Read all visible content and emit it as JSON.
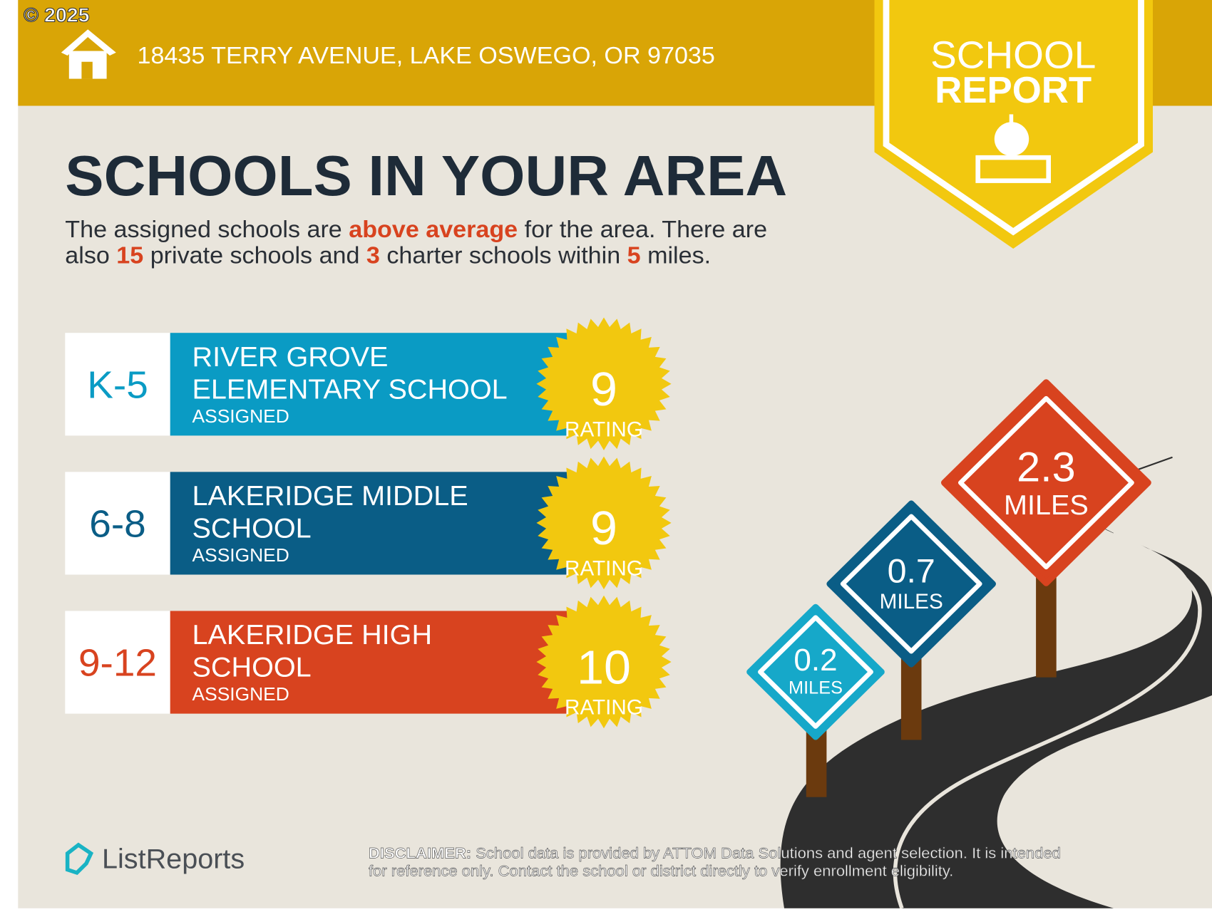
{
  "copyright": "© 2025",
  "header": {
    "address": "18435 TERRY AVENUE, LAKE OSWEGO, OR 97035",
    "badge_line1": "SCHOOL",
    "badge_line2": "REPORT"
  },
  "title": "SCHOOLS IN YOUR AREA",
  "summary": [
    [
      "The assigned schools are ",
      "above average",
      " for the area. There are"
    ],
    [
      "also ",
      15,
      " private schools and ",
      3,
      " charter schools within ",
      5,
      " miles."
    ]
  ],
  "schools": [
    {
      "grades": "K-5",
      "name_lines": [
        "RIVER GROVE",
        "ELEMENTARY SCHOOL"
      ],
      "status": "ASSIGNED",
      "rating": 9,
      "rating_label": "RATING"
    },
    {
      "grades": "6-8",
      "name_lines": [
        "LAKERIDGE MIDDLE",
        "SCHOOL"
      ],
      "status": "ASSIGNED",
      "rating": 9,
      "rating_label": "RATING"
    },
    {
      "grades": "9-12",
      "name_lines": [
        "LAKERIDGE HIGH",
        "SCHOOL"
      ],
      "status": "ASSIGNED",
      "rating": 10,
      "rating_label": "RATING"
    }
  ],
  "distances": [
    {
      "value": 0.2,
      "unit": "MILES"
    },
    {
      "value": 0.7,
      "unit": "MILES"
    },
    {
      "value": 2.3,
      "unit": "MILES"
    }
  ],
  "logo": "ListReports",
  "disclaimer": {
    "label": "DISCLAIMER:",
    "lines": [
      " School data is provided by ATTOM Data Solutions and agent selection. It is intended",
      "for reference only. Contact the school or district directly to verify enrollment eligibility."
    ]
  }
}
